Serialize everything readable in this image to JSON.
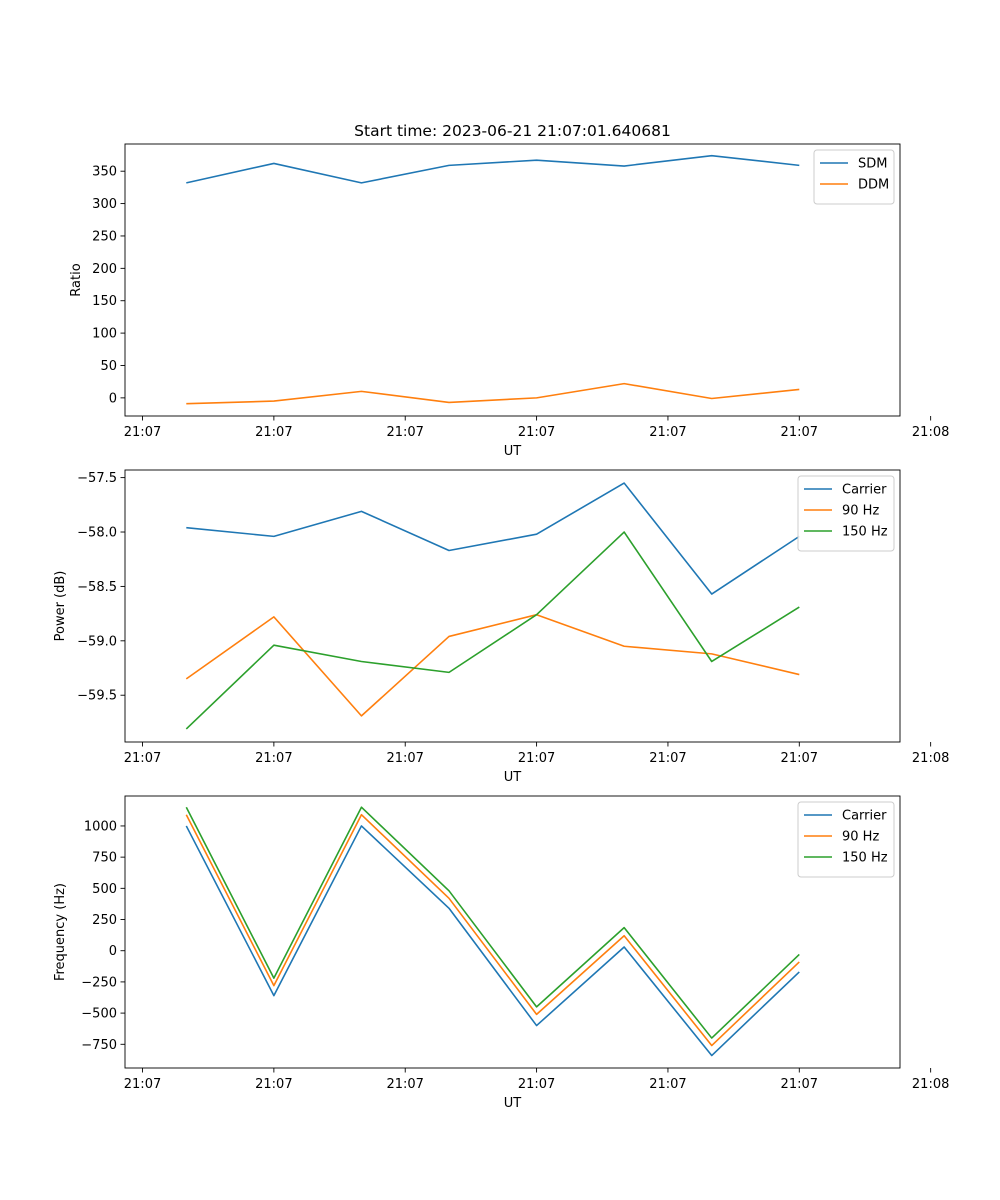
{
  "figure_title": "Start time: 2023-06-21 21:07:01.640681",
  "chart_data": [
    {
      "type": "line",
      "title": "Start time: 2023-06-21 21:07:01.640681",
      "xlabel": "UT",
      "ylabel": "Ratio",
      "x": [
        1,
        2,
        3,
        4,
        5,
        6,
        7,
        8
      ],
      "xlim": [
        0.3,
        9.15
      ],
      "ylim": [
        -28,
        392
      ],
      "xticks": [
        {
          "value": 0.5,
          "label": "21:07"
        },
        {
          "value": 2.0,
          "label": "21:07"
        },
        {
          "value": 3.5,
          "label": "21:07"
        },
        {
          "value": 5.0,
          "label": "21:07"
        },
        {
          "value": 6.5,
          "label": "21:07"
        },
        {
          "value": 8.0,
          "label": "21:07"
        },
        {
          "value": 9.5,
          "label": "21:08"
        }
      ],
      "yticks": [
        {
          "value": 0,
          "label": "0"
        },
        {
          "value": 50,
          "label": "50"
        },
        {
          "value": 100,
          "label": "100"
        },
        {
          "value": 150,
          "label": "150"
        },
        {
          "value": 200,
          "label": "200"
        },
        {
          "value": 250,
          "label": "250"
        },
        {
          "value": 300,
          "label": "300"
        },
        {
          "value": 350,
          "label": "350"
        }
      ],
      "legend_position": "top-right",
      "grid": false,
      "series": [
        {
          "name": "SDM",
          "color": "#1f77b4",
          "values": [
            332,
            362,
            332,
            359,
            367,
            358,
            374,
            359
          ]
        },
        {
          "name": "DDM",
          "color": "#ff7f0e",
          "values": [
            -9,
            -5,
            10,
            -7,
            0,
            22,
            -1,
            13
          ]
        }
      ]
    },
    {
      "type": "line",
      "title": "",
      "xlabel": "UT",
      "ylabel": "Power (dB)",
      "x": [
        1,
        2,
        3,
        4,
        5,
        6,
        7,
        8
      ],
      "xlim": [
        0.3,
        9.15
      ],
      "ylim": [
        -59.93,
        -57.43
      ],
      "xticks": [
        {
          "value": 0.5,
          "label": "21:07"
        },
        {
          "value": 2.0,
          "label": "21:07"
        },
        {
          "value": 3.5,
          "label": "21:07"
        },
        {
          "value": 5.0,
          "label": "21:07"
        },
        {
          "value": 6.5,
          "label": "21:07"
        },
        {
          "value": 8.0,
          "label": "21:07"
        },
        {
          "value": 9.5,
          "label": "21:08"
        }
      ],
      "yticks": [
        {
          "value": -59.5,
          "label": "−59.5"
        },
        {
          "value": -59.0,
          "label": "−59.0"
        },
        {
          "value": -58.5,
          "label": "−58.5"
        },
        {
          "value": -58.0,
          "label": "−58.0"
        },
        {
          "value": -57.5,
          "label": "−57.5"
        }
      ],
      "legend_position": "top-right",
      "grid": false,
      "series": [
        {
          "name": "Carrier",
          "color": "#1f77b4",
          "values": [
            -57.96,
            -58.04,
            -57.81,
            -58.17,
            -58.02,
            -57.55,
            -58.57,
            -58.04
          ]
        },
        {
          "name": "90 Hz",
          "color": "#ff7f0e",
          "values": [
            -59.35,
            -58.78,
            -59.69,
            -58.96,
            -58.76,
            -59.05,
            -59.12,
            -59.31
          ]
        },
        {
          "name": "150 Hz",
          "color": "#2ca02c",
          "values": [
            -59.81,
            -59.04,
            -59.19,
            -59.29,
            -58.76,
            -58.0,
            -59.19,
            -58.69
          ]
        }
      ]
    },
    {
      "type": "line",
      "title": "",
      "xlabel": "UT",
      "ylabel": "Frequency (Hz)",
      "x": [
        1,
        2,
        3,
        4,
        5,
        6,
        7,
        8
      ],
      "xlim": [
        0.3,
        9.15
      ],
      "ylim": [
        -940,
        1240
      ],
      "xticks": [
        {
          "value": 0.5,
          "label": "21:07"
        },
        {
          "value": 2.0,
          "label": "21:07"
        },
        {
          "value": 3.5,
          "label": "21:07"
        },
        {
          "value": 5.0,
          "label": "21:07"
        },
        {
          "value": 6.5,
          "label": "21:07"
        },
        {
          "value": 8.0,
          "label": "21:07"
        },
        {
          "value": 9.5,
          "label": "21:08"
        }
      ],
      "yticks": [
        {
          "value": -750,
          "label": "−750"
        },
        {
          "value": -500,
          "label": "−500"
        },
        {
          "value": -250,
          "label": "−250"
        },
        {
          "value": 0,
          "label": "0"
        },
        {
          "value": 250,
          "label": "250"
        },
        {
          "value": 500,
          "label": "500"
        },
        {
          "value": 750,
          "label": "750"
        },
        {
          "value": 1000,
          "label": "1000"
        }
      ],
      "legend_position": "top-right",
      "grid": false,
      "series": [
        {
          "name": "Carrier",
          "color": "#1f77b4",
          "values": [
            1000,
            -360,
            1000,
            340,
            -600,
            30,
            -840,
            -170
          ]
        },
        {
          "name": "90 Hz",
          "color": "#ff7f0e",
          "values": [
            1090,
            -280,
            1090,
            420,
            -510,
            120,
            -760,
            -90
          ]
        },
        {
          "name": "150 Hz",
          "color": "#2ca02c",
          "values": [
            1150,
            -220,
            1150,
            480,
            -450,
            185,
            -700,
            -30
          ]
        }
      ]
    }
  ]
}
